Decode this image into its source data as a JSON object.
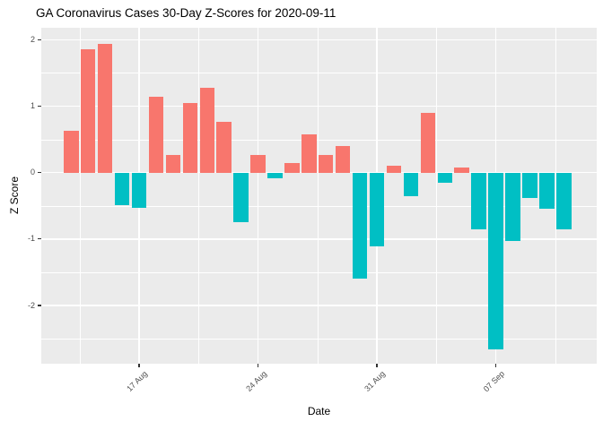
{
  "chart_data": {
    "type": "bar",
    "title": "GA Coronavirus Cases 30-Day Z-Scores for 2020-09-11",
    "xlabel": "Date",
    "ylabel": "Z Score",
    "x": [
      "2020-08-13",
      "2020-08-14",
      "2020-08-15",
      "2020-08-16",
      "2020-08-17",
      "2020-08-18",
      "2020-08-19",
      "2020-08-20",
      "2020-08-21",
      "2020-08-22",
      "2020-08-23",
      "2020-08-24",
      "2020-08-25",
      "2020-08-26",
      "2020-08-27",
      "2020-08-28",
      "2020-08-29",
      "2020-08-30",
      "2020-08-31",
      "2020-09-01",
      "2020-09-02",
      "2020-09-03",
      "2020-09-04",
      "2020-09-05",
      "2020-09-06",
      "2020-09-07",
      "2020-09-08",
      "2020-09-09",
      "2020-09-10",
      "2020-09-11"
    ],
    "values": [
      0.63,
      1.86,
      1.94,
      -0.49,
      -0.53,
      1.14,
      0.27,
      1.05,
      1.27,
      0.77,
      -0.74,
      0.27,
      -0.09,
      0.14,
      0.58,
      0.26,
      0.4,
      -1.6,
      -1.11,
      0.11,
      -0.36,
      0.9,
      -0.15,
      0.07,
      -0.85,
      -2.66,
      -1.03,
      -0.38,
      -0.54,
      -0.85
    ],
    "bar_colors": {
      "positive": "#F8766D",
      "negative": "#00BFC4"
    },
    "panel_background": "#EBEBEB",
    "grid_color": "#FFFFFF",
    "axis_text_color": "#4D4D4D",
    "ylim": [
      -2.875,
      2.179
    ],
    "xlim_index": [
      -1.76,
      30.94
    ],
    "y_major_ticks": [
      2,
      1,
      0,
      -1,
      -2
    ],
    "y_minor_ticks": [
      1.5,
      0.5,
      -0.5,
      -1.5,
      -2.5
    ],
    "x_major_ticks": [
      {
        "index": 4,
        "label": "17 Aug"
      },
      {
        "index": 11,
        "label": "24 Aug"
      },
      {
        "index": 18,
        "label": "31 Aug"
      },
      {
        "index": 25,
        "label": "07 Sep"
      }
    ],
    "x_minor_tick_indices": [
      0.5,
      7.5,
      14.5,
      21.5,
      28.5
    ],
    "legend": "none"
  }
}
